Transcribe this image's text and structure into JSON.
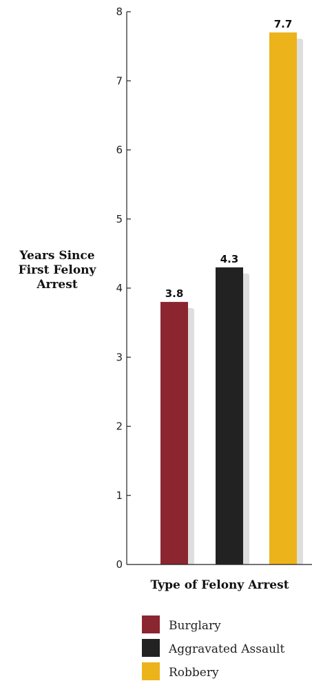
{
  "chart_data": {
    "type": "bar",
    "title": "",
    "categories": [
      "Burglary",
      "Aggravated Assault",
      "Robbery"
    ],
    "values": [
      3.8,
      4.3,
      7.7
    ],
    "value_labels": [
      "3.8",
      "4.3",
      "7.7"
    ],
    "colors": [
      "#8b2630",
      "#222222",
      "#ecb31a"
    ],
    "xlabel": "Type of Felony Arrest",
    "ylabel_lines": [
      "Years Since",
      "First Felony",
      "Arrest"
    ],
    "ylim": [
      0,
      8
    ],
    "yticks": [
      "0",
      "1",
      "2",
      "3",
      "4",
      "5",
      "6",
      "7",
      "8"
    ],
    "grid": false,
    "legend": {
      "position": "bottom",
      "entries": [
        "Burglary",
        "Aggravated Assault",
        "Robbery"
      ]
    }
  }
}
